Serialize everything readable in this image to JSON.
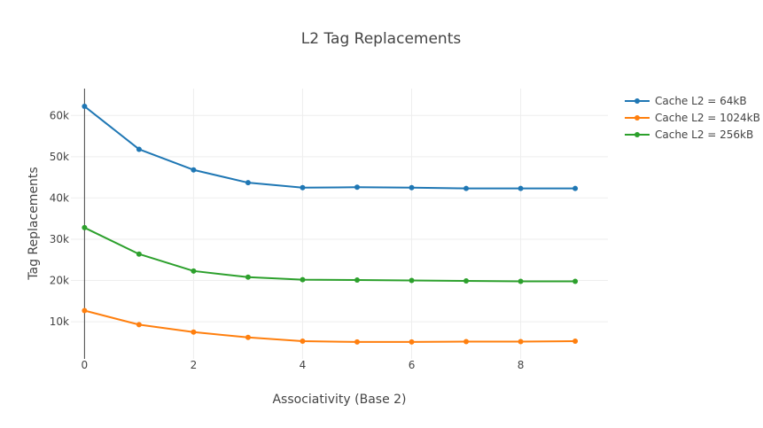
{
  "chart_data": {
    "type": "line",
    "title": "L2 Tag Replacements",
    "xlabel": "Associativity (Base 2)",
    "ylabel": "Tag Replacements",
    "xlim": [
      -0.25,
      9.6
    ],
    "ylim": [
      1000,
      66500
    ],
    "x_ticks": [
      0,
      2,
      4,
      6,
      8
    ],
    "x_tick_labels": [
      "0",
      "2",
      "4",
      "6",
      "8"
    ],
    "y_ticks": [
      10000,
      20000,
      30000,
      40000,
      50000,
      60000
    ],
    "y_tick_labels": [
      "10k",
      "20k",
      "30k",
      "40k",
      "50k",
      "60k"
    ],
    "grid": true,
    "zero_line_x": 0,
    "legend_position": "top-right",
    "x": [
      0,
      1,
      2,
      3,
      4,
      5,
      6,
      7,
      8,
      9
    ],
    "series": [
      {
        "name": "Cache L2 = 64kB",
        "color": "#1f77b4",
        "values": [
          62200,
          51800,
          46800,
          43700,
          42500,
          42600,
          42500,
          42300,
          42300,
          42300
        ]
      },
      {
        "name": "Cache L2 = 1024kB",
        "color": "#ff7f0e",
        "values": [
          12700,
          9300,
          7500,
          6200,
          5300,
          5100,
          5100,
          5200,
          5200,
          5300
        ]
      },
      {
        "name": "Cache L2 = 256kB",
        "color": "#2ca02c",
        "values": [
          32800,
          26400,
          22300,
          20800,
          20200,
          20100,
          20000,
          19900,
          19800,
          19800
        ]
      }
    ]
  }
}
